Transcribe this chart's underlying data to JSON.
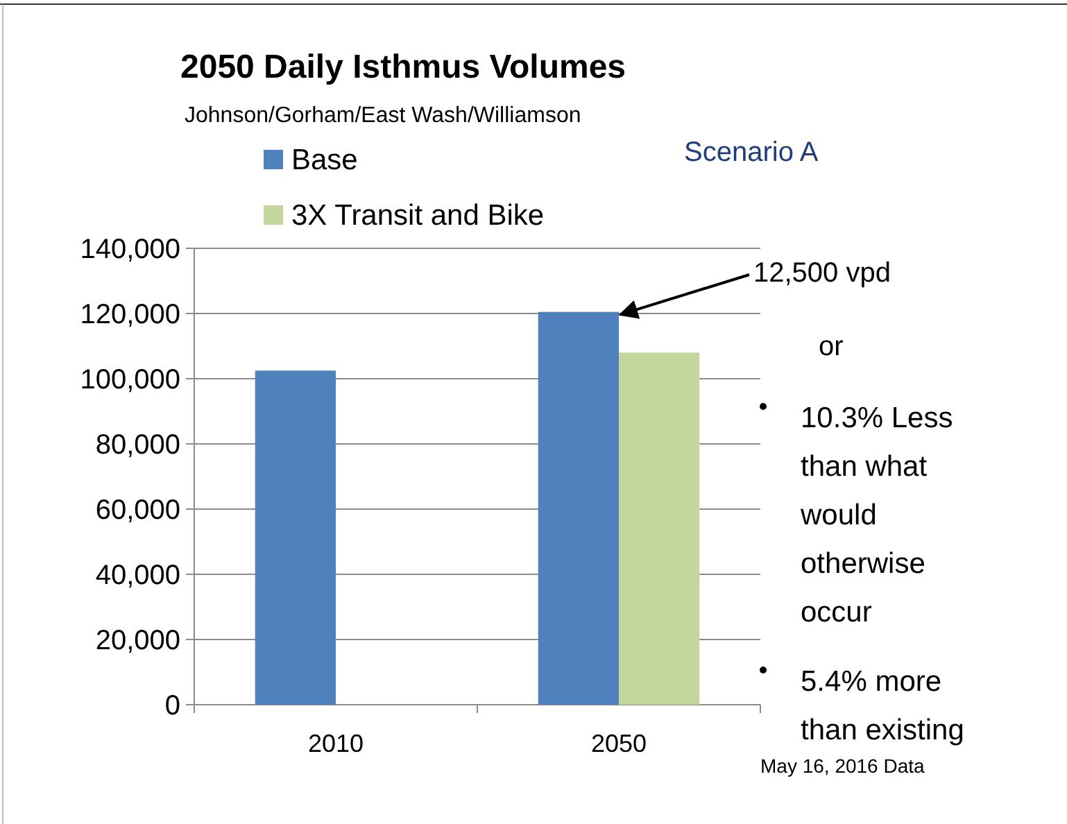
{
  "chart_data": {
    "type": "bar",
    "title": "2050 Daily Isthmus Volumes",
    "subtitle": "Johnson/Gorham/East Wash/Williamson",
    "categories": [
      "2010",
      "2050"
    ],
    "series": [
      {
        "name": "Base",
        "color": "#4f81bd",
        "values": [
          102500,
          120500
        ]
      },
      {
        "name": "3X Transit and Bike",
        "color": "#c3d69b",
        "values": [
          null,
          108000
        ]
      }
    ],
    "ylim": [
      0,
      140000
    ],
    "yticks": [
      {
        "value": 0,
        "label": "0"
      },
      {
        "value": 20000,
        "label": "20,000"
      },
      {
        "value": 40000,
        "label": "40,000"
      },
      {
        "value": 60000,
        "label": "60,000"
      },
      {
        "value": 80000,
        "label": "80,000"
      },
      {
        "value": 100000,
        "label": "100,000"
      },
      {
        "value": 120000,
        "label": "120,000"
      },
      {
        "value": 140000,
        "label": "140,000"
      }
    ],
    "grid": "y",
    "legend": "top left",
    "annotations": [
      "Scenario A",
      {
        "text": "12,500 vpd",
        "x": "2050",
        "y": 120500
      },
      "or",
      "10.3% Less than what would otherwise occur",
      "5.4% more than existing",
      "May 16, 2016 Data"
    ]
  }
}
